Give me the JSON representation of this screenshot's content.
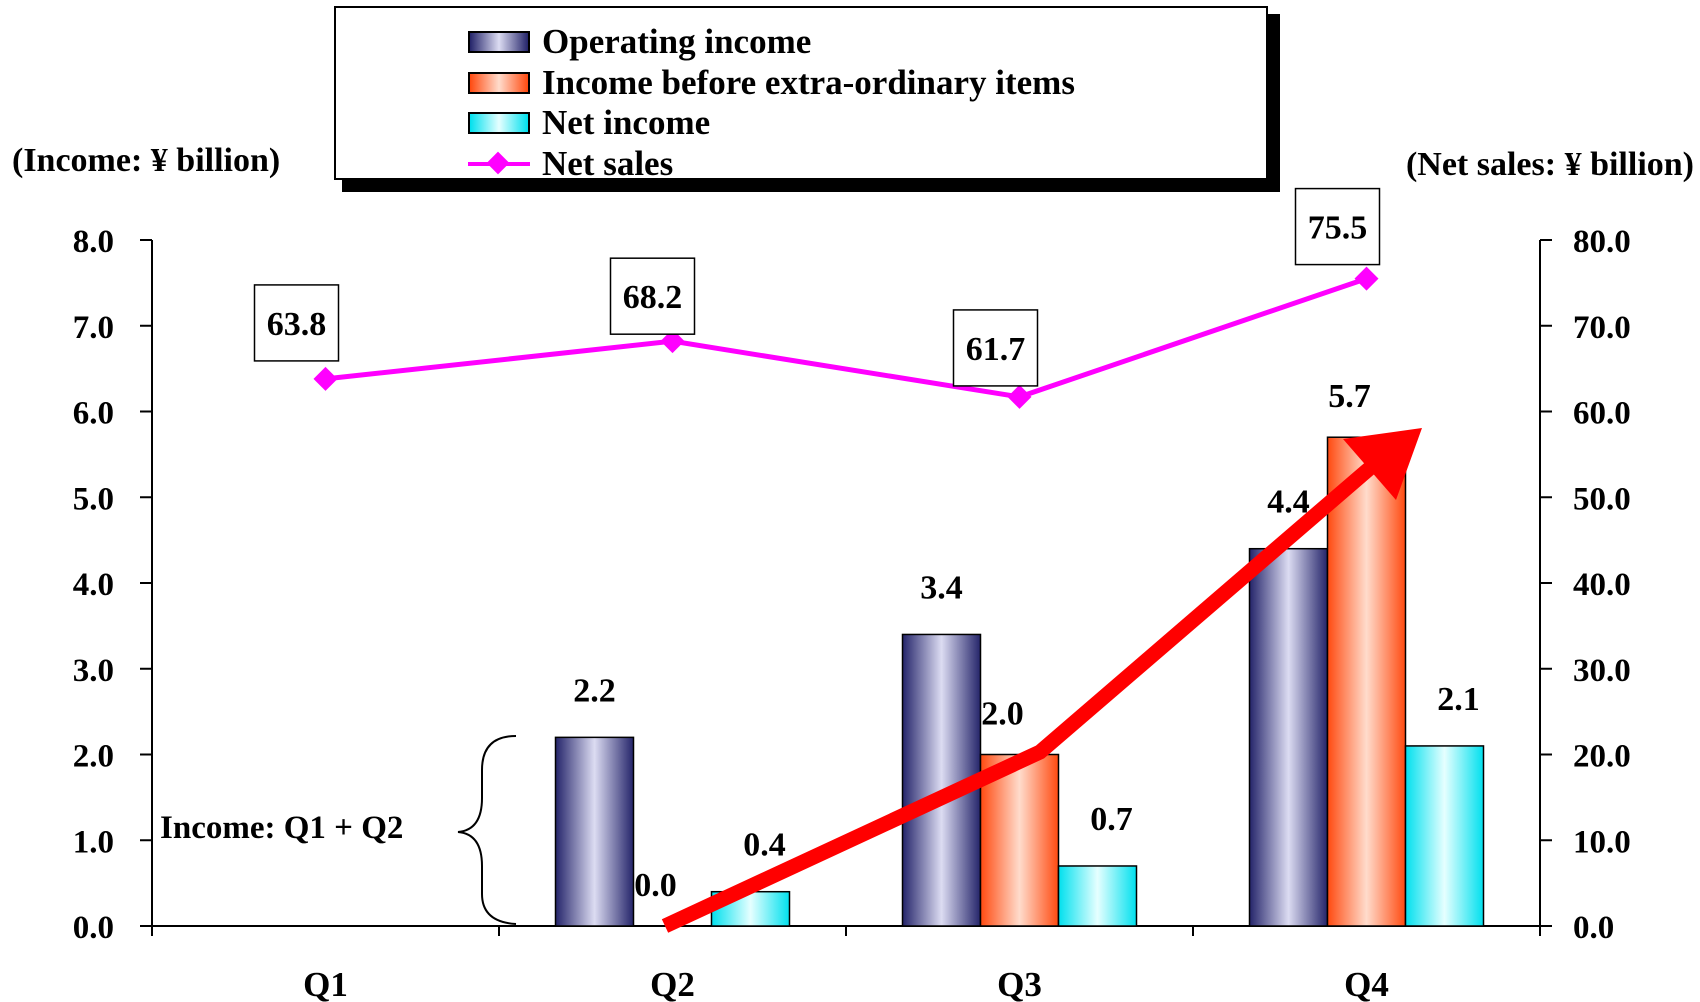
{
  "chart_data": {
    "type": "bar",
    "categories": [
      "Q1",
      "Q2",
      "Q3",
      "Q4"
    ],
    "left_axis": {
      "label": "(Income: ¥ billion)",
      "ylim": [
        0,
        8
      ],
      "ticks": [
        "0.0",
        "1.0",
        "2.0",
        "3.0",
        "4.0",
        "5.0",
        "6.0",
        "7.0",
        "8.0"
      ]
    },
    "right_axis": {
      "label": "(Net sales: ¥ billion)",
      "ylim": [
        0,
        80
      ],
      "ticks": [
        "0.0",
        "10.0",
        "20.0",
        "30.0",
        "40.0",
        "50.0",
        "60.0",
        "70.0",
        "80.0"
      ]
    },
    "series": [
      {
        "name": "Operating income",
        "type": "bar",
        "axis": "left",
        "values": [
          null,
          2.2,
          3.4,
          4.4
        ],
        "labels": [
          "",
          "2.2",
          "3.4",
          "4.4"
        ],
        "color": "#2e2e7a"
      },
      {
        "name": "Income before extra-ordinary items",
        "type": "bar",
        "axis": "left",
        "values": [
          null,
          0.0,
          2.0,
          5.7
        ],
        "labels": [
          "",
          "0.0",
          "2.0",
          "5.7"
        ],
        "color": "#ff5a1e"
      },
      {
        "name": "Net income",
        "type": "bar",
        "axis": "left",
        "values": [
          null,
          0.4,
          0.7,
          2.1
        ],
        "labels": [
          "",
          "0.4",
          "0.7",
          "2.1"
        ],
        "color": "#00e6f0"
      },
      {
        "name": "Net sales",
        "type": "line",
        "axis": "right",
        "values": [
          63.8,
          68.2,
          61.7,
          75.5
        ],
        "labels": [
          "63.8",
          "68.2",
          "61.7",
          "75.5"
        ],
        "color": "#ff00ff"
      }
    ],
    "legend_position": "top-center",
    "annotation": "Income: Q1 + Q2",
    "trend_arrow": {
      "color": "#ff0000"
    }
  }
}
